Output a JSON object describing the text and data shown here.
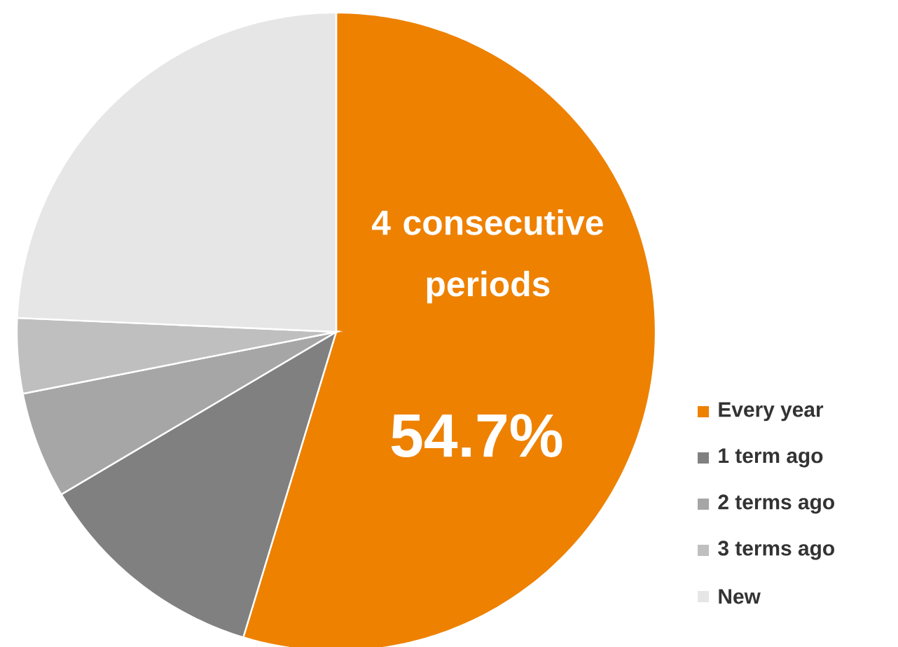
{
  "chart_data": {
    "type": "pie",
    "categories": [
      "Every year",
      "1 term ago",
      "2 terms ago",
      "3 terms ago",
      "New"
    ],
    "values": [
      54.7,
      11.8,
      5.4,
      3.8,
      24.3
    ],
    "colors": [
      "#ee8100",
      "#808080",
      "#a6a6a6",
      "#bfbfbf",
      "#e6e6e6"
    ],
    "value_labels": [
      "54.7%",
      null,
      null,
      null,
      null
    ],
    "annotations": [
      "4 consecutive periods"
    ],
    "legend": "bottom right"
  }
}
